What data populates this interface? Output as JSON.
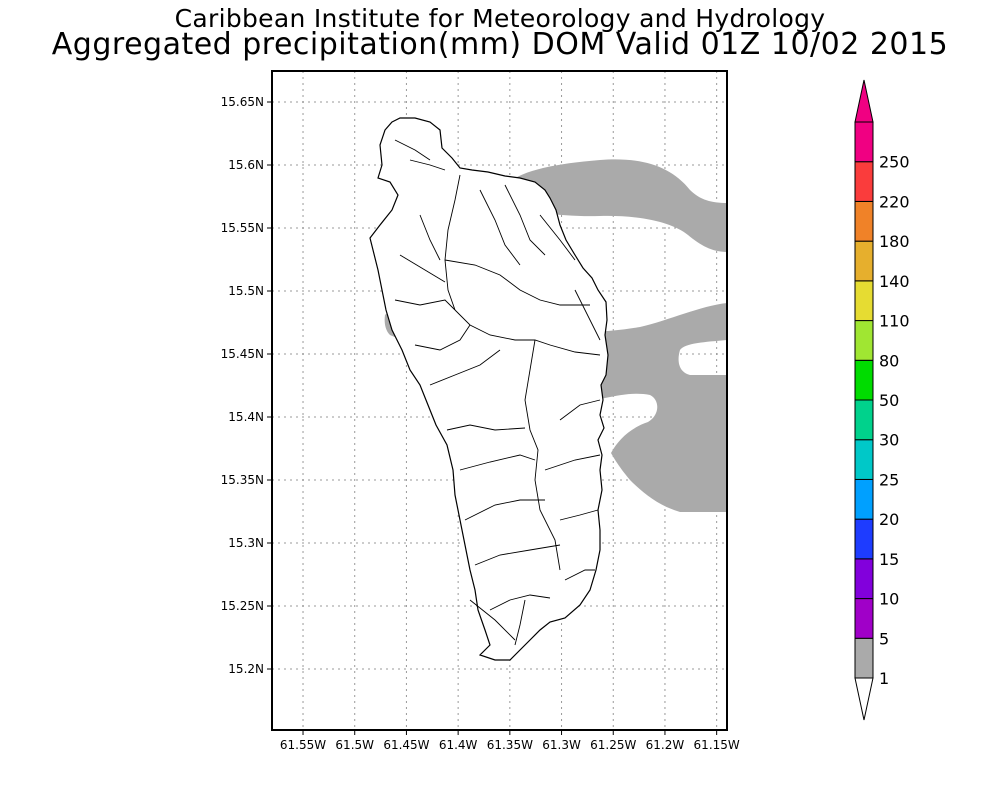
{
  "header": {
    "title_line1": "Caribbean Institute for Meteorology and Hydrology",
    "title_line2": "Aggregated precipitation(mm) DOM Valid 01Z 10/02 2015"
  },
  "map": {
    "lon_range": [
      -61.58,
      -61.14
    ],
    "lat_range": [
      15.15,
      15.68
    ],
    "grid": "dotted",
    "lon_ticks": [
      {
        "value": -61.55,
        "label": "61.55W"
      },
      {
        "value": -61.5,
        "label": "61.5W"
      },
      {
        "value": -61.45,
        "label": "61.45W"
      },
      {
        "value": -61.4,
        "label": "61.4W"
      },
      {
        "value": -61.35,
        "label": "61.35W"
      },
      {
        "value": -61.3,
        "label": "61.3W"
      },
      {
        "value": -61.25,
        "label": "61.25W"
      },
      {
        "value": -61.2,
        "label": "61.2W"
      },
      {
        "value": -61.15,
        "label": "61.15W"
      }
    ],
    "lat_ticks": [
      {
        "value": 15.2,
        "label": "15.2N"
      },
      {
        "value": 15.25,
        "label": "15.25N"
      },
      {
        "value": 15.3,
        "label": "15.3N"
      },
      {
        "value": 15.35,
        "label": "15.35N"
      },
      {
        "value": 15.4,
        "label": "15.4N"
      },
      {
        "value": 15.45,
        "label": "15.45N"
      },
      {
        "value": 15.5,
        "label": "15.5N"
      },
      {
        "value": 15.55,
        "label": "15.55N"
      },
      {
        "value": 15.6,
        "label": "15.6N"
      },
      {
        "value": 15.65,
        "label": "15.65N"
      }
    ],
    "precip_color": "#aaaaaa",
    "land_color": "#ffffff"
  },
  "colorbar": {
    "labels": [
      "1",
      "5",
      "10",
      "15",
      "20",
      "25",
      "30",
      "50",
      "80",
      "110",
      "140",
      "180",
      "220",
      "250"
    ],
    "colors": [
      "#aaaaaa",
      "#a000c8",
      "#8200dc",
      "#1e3cff",
      "#00a0ff",
      "#00c8c8",
      "#00d28c",
      "#00dc00",
      "#a0e632",
      "#e6dc32",
      "#e6af2d",
      "#f08228",
      "#fa3c3c",
      "#f00082"
    ],
    "under_color": "#ffffff",
    "over_color": "#f00082"
  }
}
